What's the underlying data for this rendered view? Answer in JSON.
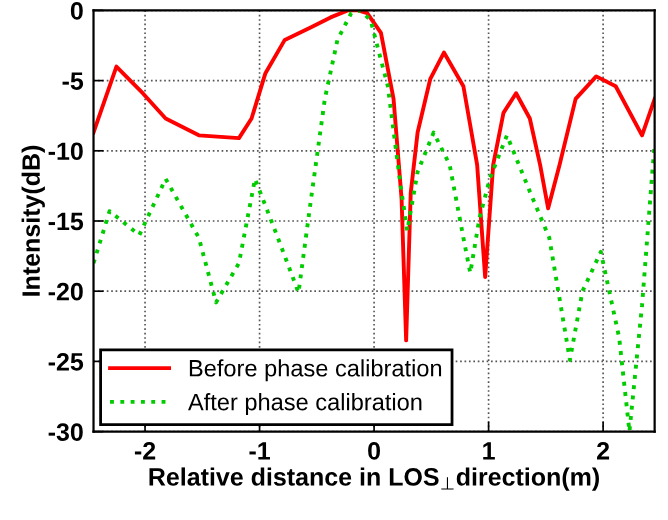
{
  "chart_data": {
    "type": "line",
    "xlabel": "Relative distance in LOS$_{⊥}$direction(m)",
    "ylabel": "Intensity(dB)",
    "xlim": [
      -2.45,
      2.45
    ],
    "ylim": [
      -30,
      0
    ],
    "xticks": [
      -2,
      -1,
      0,
      1,
      2
    ],
    "yticks": [
      0,
      -5,
      -10,
      -15,
      -20,
      -25,
      -30
    ],
    "grid": true,
    "legend": "bottom left",
    "series": [
      {
        "name": "Before phase calibration",
        "color": "#ff0000",
        "line_style": "solid",
        "x": [
          -2.45,
          -2.25,
          -2.02,
          -1.82,
          -1.53,
          -1.18,
          -1.07,
          -0.95,
          -0.78,
          -0.55,
          -0.38,
          -0.23,
          -0.14,
          -0.06,
          0.06,
          0.17,
          0.24,
          0.28,
          0.32,
          0.38,
          0.49,
          0.61,
          0.78,
          0.9,
          0.97,
          1.04,
          1.13,
          1.24,
          1.36,
          1.45,
          1.52,
          1.62,
          1.76,
          1.94,
          2.11,
          2.34,
          2.45
        ],
        "values": [
          -8.7,
          -4.0,
          -5.9,
          -7.7,
          -8.9,
          -9.1,
          -7.7,
          -4.5,
          -2.1,
          -1.2,
          -0.5,
          0,
          0,
          -0.2,
          -1.6,
          -6.3,
          -13.4,
          -23.5,
          -13,
          -8.7,
          -4.9,
          -3.0,
          -5.4,
          -11,
          -19.0,
          -11,
          -7.3,
          -5.9,
          -7.7,
          -11,
          -14.1,
          -11,
          -6.3,
          -4.7,
          -5.4,
          -8.9,
          -6.3
        ]
      },
      {
        "name": "After phase calibration",
        "color": "#00cc00",
        "line_style": "dotted",
        "x": [
          -2.45,
          -2.31,
          -2.05,
          -1.82,
          -1.53,
          -1.38,
          -1.18,
          -1.04,
          -0.84,
          -0.66,
          -0.55,
          -0.43,
          -0.32,
          -0.2,
          -0.12,
          -0.03,
          0.12,
          0.23,
          0.29,
          0.38,
          0.52,
          0.66,
          0.78,
          0.84,
          0.92,
          1.01,
          1.16,
          1.36,
          1.53,
          1.71,
          1.82,
          1.98,
          2.14,
          2.23,
          2.34,
          2.43,
          2.45
        ],
        "values": [
          -18,
          -14.3,
          -16,
          -12,
          -16.2,
          -20.8,
          -18,
          -12,
          -16.2,
          -20.1,
          -13.4,
          -6.3,
          -2.1,
          -0.2,
          0,
          -0.7,
          -5.4,
          -12.4,
          -15.7,
          -11.5,
          -8.7,
          -11,
          -16.2,
          -18.7,
          -14.8,
          -12,
          -8.9,
          -12.9,
          -16.2,
          -24.9,
          -20,
          -17.2,
          -23.3,
          -30,
          -21,
          -11.5,
          -9.5
        ]
      }
    ]
  }
}
